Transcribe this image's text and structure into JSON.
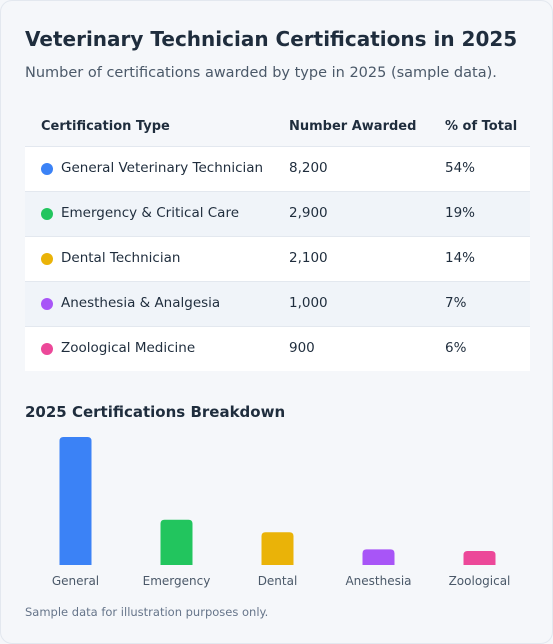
{
  "header": {
    "title": "Veterinary Technician Certifications in 2025",
    "subtitle": "Number of certifications awarded by type in 2025 (sample data)."
  },
  "table": {
    "columns": [
      "Certification Type",
      "Number Awarded",
      "% of Total"
    ],
    "rows": [
      {
        "type": "General Veterinary Technician",
        "awarded": "8,200",
        "percent": "54%",
        "color": "#3b82f6"
      },
      {
        "type": "Emergency & Critical Care",
        "awarded": "2,900",
        "percent": "19%",
        "color": "#22c55e"
      },
      {
        "type": "Dental Technician",
        "awarded": "2,100",
        "percent": "14%",
        "color": "#eab308"
      },
      {
        "type": "Anesthesia & Analgesia",
        "awarded": "1,000",
        "percent": "7%",
        "color": "#a855f7"
      },
      {
        "type": "Zoological Medicine",
        "awarded": "900",
        "percent": "6%",
        "color": "#ec4899"
      }
    ]
  },
  "chart_data": {
    "type": "bar",
    "title": "2025 Certifications Breakdown",
    "categories": [
      "General",
      "Emergency",
      "Dental",
      "Anesthesia",
      "Zoological"
    ],
    "values": [
      8200,
      2900,
      2100,
      1000,
      900
    ],
    "colors": [
      "#3b82f6",
      "#22c55e",
      "#eab308",
      "#a855f7",
      "#ec4899"
    ],
    "xlabel": "",
    "ylabel": "",
    "grid": false
  },
  "footnote": "Sample data for illustration purposes only."
}
